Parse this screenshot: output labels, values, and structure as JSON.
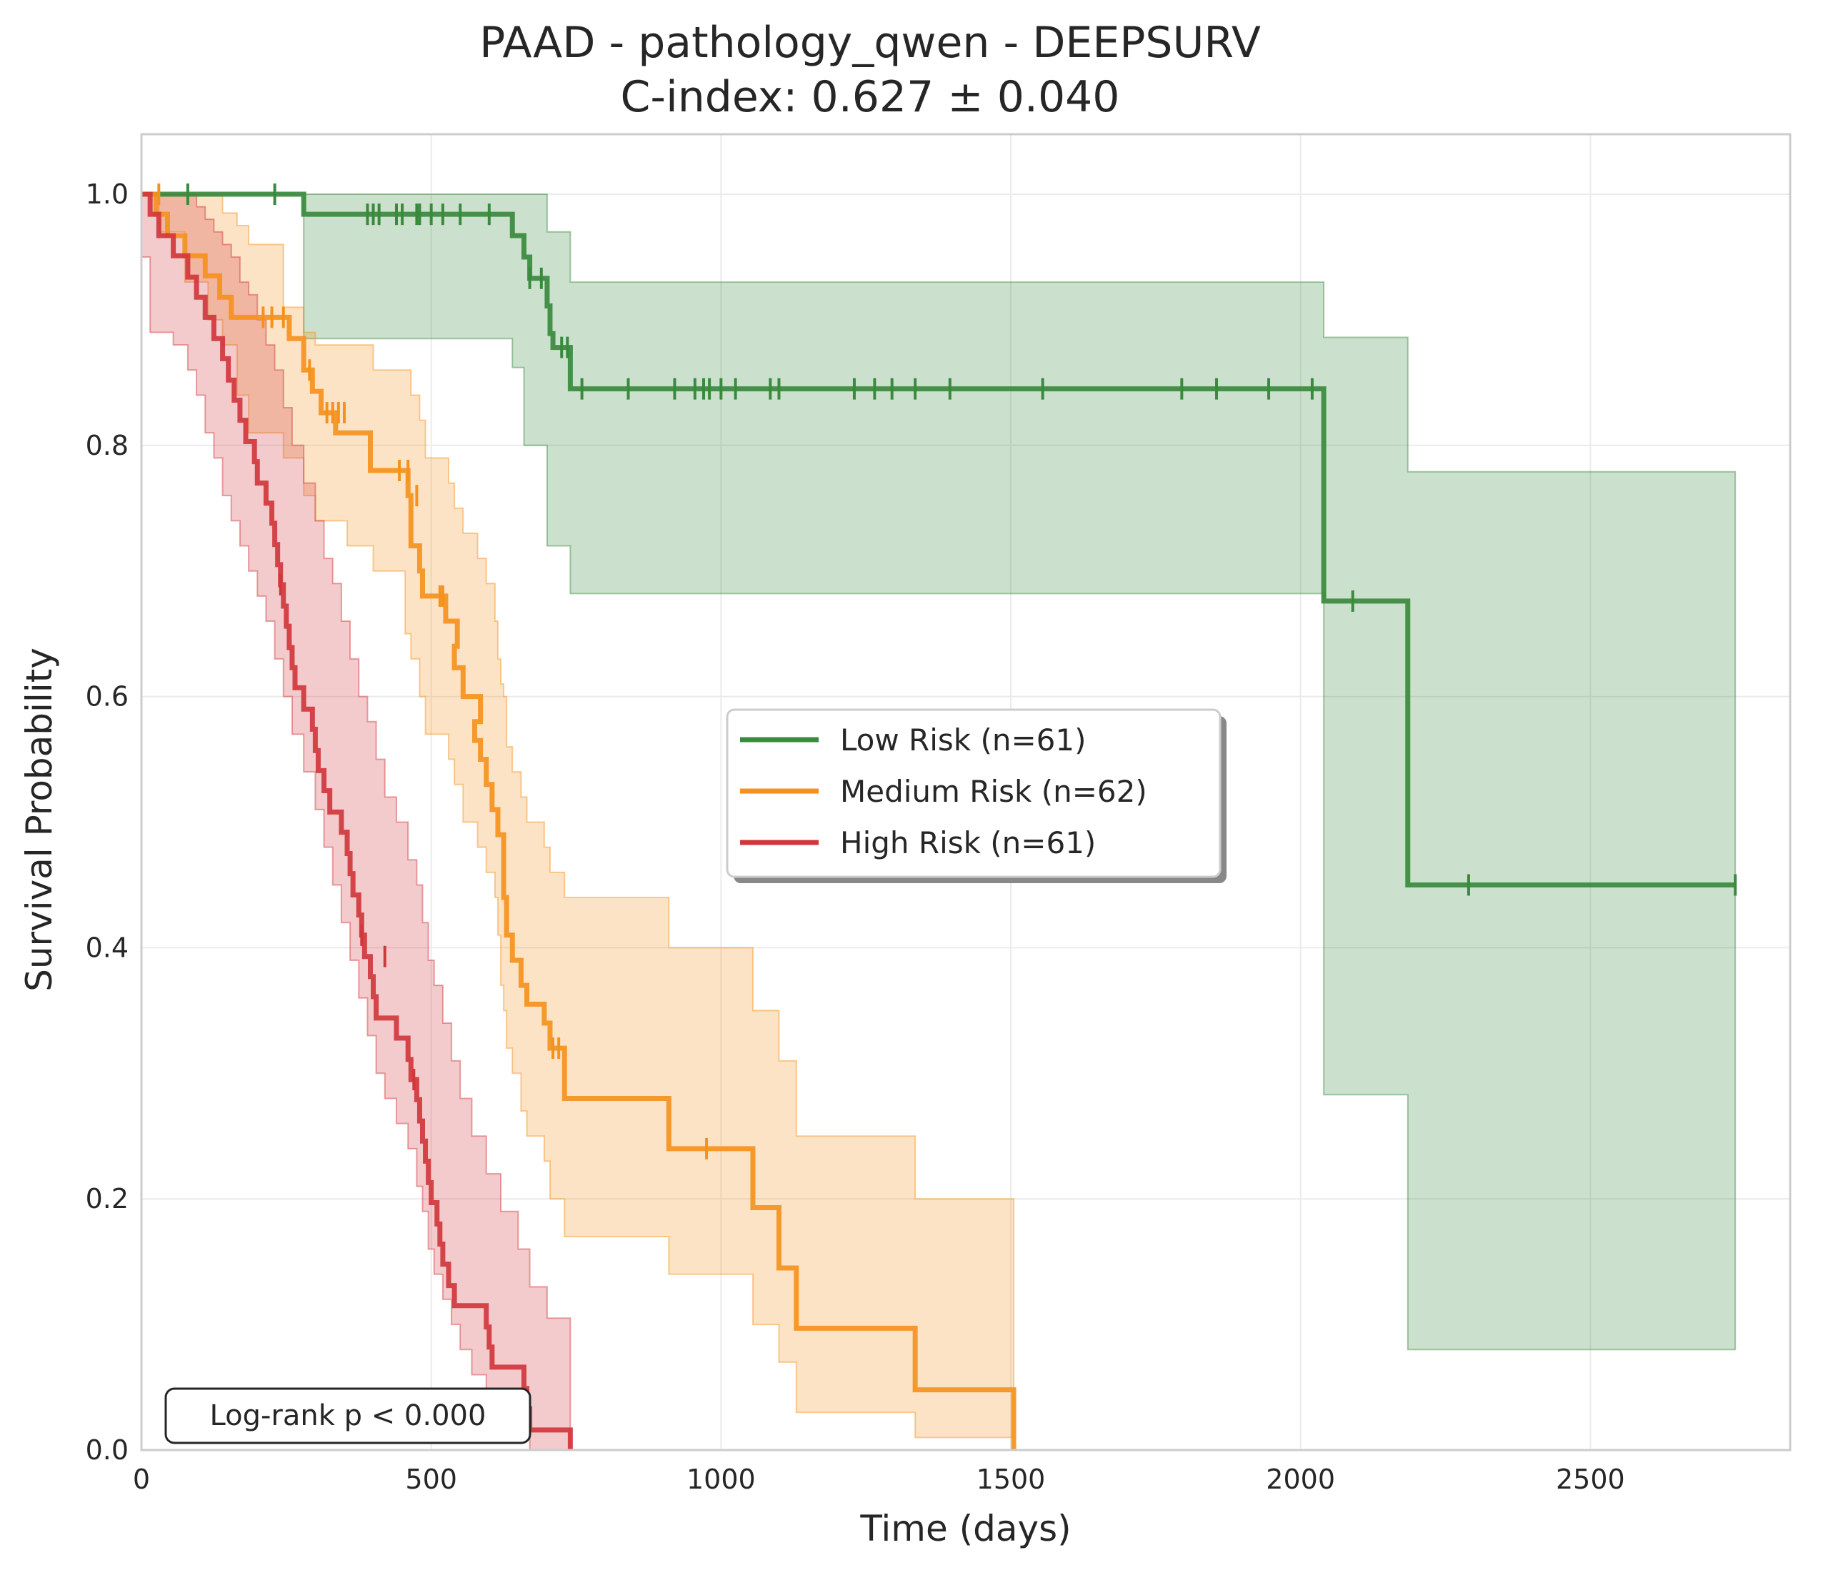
{
  "chart_data": {
    "type": "line",
    "title": "PAAD - pathology_qwen - DEEPSURV",
    "subtitle": "C-index: 0.627 ± 0.040",
    "xlabel": "Time (days)",
    "ylabel": "Survival Probability",
    "xlim": [
      0,
      2890
    ],
    "ylim": [
      0,
      1.05
    ],
    "xticks": [
      0,
      500,
      1000,
      1500,
      2000,
      2500
    ],
    "xtick_labels": [
      "0",
      "500",
      "1000",
      "1500",
      "2000",
      "2500"
    ],
    "yticks": [
      0.0,
      0.2,
      0.4,
      0.6,
      0.8,
      1.0
    ],
    "ytick_labels": [
      "0.0",
      "0.2",
      "0.4",
      "0.6",
      "0.8",
      "1.0"
    ],
    "grid": true,
    "legend_position": "center-right",
    "annotation": "Log-rank p < 0.000",
    "series": [
      {
        "name": "Low Risk (n=61)",
        "color": "#3a8a3e",
        "steps": [
          [
            0,
            1.0
          ],
          [
            280,
            0.984
          ],
          [
            640,
            0.967
          ],
          [
            660,
            0.95
          ],
          [
            670,
            0.933
          ],
          [
            700,
            0.911
          ],
          [
            705,
            0.889
          ],
          [
            710,
            0.878
          ],
          [
            740,
            0.845
          ],
          [
            2040,
            0.676
          ],
          [
            2185,
            0.45
          ],
          [
            2750,
            0.45
          ]
        ],
        "ci": [
          [
            0,
            1.0,
            1.0
          ],
          [
            280,
            0.885,
            1.0
          ],
          [
            640,
            0.862,
            1.0
          ],
          [
            660,
            0.8,
            1.0
          ],
          [
            700,
            0.72,
            0.97
          ],
          [
            740,
            0.682,
            0.93
          ],
          [
            2040,
            0.283,
            0.886
          ],
          [
            2185,
            0.08,
            0.779
          ],
          [
            2750,
            0.08,
            0.779
          ]
        ],
        "censors": [
          [
            230,
            1.0
          ],
          [
            80,
            1.0
          ],
          [
            390,
            0.984
          ],
          [
            400,
            0.984
          ],
          [
            410,
            0.984
          ],
          [
            440,
            0.984
          ],
          [
            450,
            0.984
          ],
          [
            475,
            0.984
          ],
          [
            480,
            0.984
          ],
          [
            500,
            0.984
          ],
          [
            520,
            0.984
          ],
          [
            550,
            0.984
          ],
          [
            600,
            0.984
          ],
          [
            670,
            0.933
          ],
          [
            690,
            0.933
          ],
          [
            725,
            0.878
          ],
          [
            735,
            0.878
          ],
          [
            760,
            0.845
          ],
          [
            840,
            0.845
          ],
          [
            920,
            0.845
          ],
          [
            955,
            0.845
          ],
          [
            970,
            0.845
          ],
          [
            980,
            0.845
          ],
          [
            1000,
            0.845
          ],
          [
            1025,
            0.845
          ],
          [
            1085,
            0.845
          ],
          [
            1100,
            0.845
          ],
          [
            1230,
            0.845
          ],
          [
            1265,
            0.845
          ],
          [
            1295,
            0.845
          ],
          [
            1335,
            0.845
          ],
          [
            1395,
            0.845
          ],
          [
            1555,
            0.845
          ],
          [
            1795,
            0.845
          ],
          [
            1855,
            0.845
          ],
          [
            1945,
            0.845
          ],
          [
            2020,
            0.845
          ],
          [
            2090,
            0.676
          ],
          [
            2290,
            0.45
          ],
          [
            2750,
            0.45
          ]
        ]
      },
      {
        "name": "Medium Risk (n=62)",
        "color": "#f5921e",
        "steps": [
          [
            0,
            1.0
          ],
          [
            25,
            0.984
          ],
          [
            45,
            0.967
          ],
          [
            75,
            0.951
          ],
          [
            110,
            0.935
          ],
          [
            135,
            0.918
          ],
          [
            155,
            0.902
          ],
          [
            255,
            0.885
          ],
          [
            280,
            0.86
          ],
          [
            295,
            0.843
          ],
          [
            310,
            0.826
          ],
          [
            335,
            0.81
          ],
          [
            395,
            0.797
          ],
          [
            395,
            0.78
          ],
          [
            460,
            0.76
          ],
          [
            465,
            0.72
          ],
          [
            480,
            0.7
          ],
          [
            485,
            0.68
          ],
          [
            525,
            0.66
          ],
          [
            545,
            0.64
          ],
          [
            540,
            0.623
          ],
          [
            555,
            0.6
          ],
          [
            585,
            0.58
          ],
          [
            575,
            0.565
          ],
          [
            585,
            0.55
          ],
          [
            595,
            0.53
          ],
          [
            605,
            0.51
          ],
          [
            615,
            0.49
          ],
          [
            625,
            0.44
          ],
          [
            630,
            0.41
          ],
          [
            640,
            0.39
          ],
          [
            655,
            0.37
          ],
          [
            665,
            0.355
          ],
          [
            695,
            0.34
          ],
          [
            705,
            0.32
          ],
          [
            730,
            0.28
          ],
          [
            910,
            0.24
          ],
          [
            1055,
            0.193
          ],
          [
            1100,
            0.145
          ],
          [
            1130,
            0.097
          ],
          [
            1335,
            0.048
          ],
          [
            1505,
            0.0
          ]
        ],
        "ci": [
          [
            0,
            1.0,
            1.0
          ],
          [
            30,
            0.97,
            1.0
          ],
          [
            75,
            0.93,
            1.0
          ],
          [
            115,
            0.9,
            1.0
          ],
          [
            140,
            0.88,
            0.985
          ],
          [
            165,
            0.84,
            0.975
          ],
          [
            185,
            0.81,
            0.96
          ],
          [
            245,
            0.79,
            0.91
          ],
          [
            280,
            0.76,
            0.89
          ],
          [
            300,
            0.74,
            0.88
          ],
          [
            355,
            0.72,
            0.88
          ],
          [
            400,
            0.7,
            0.86
          ],
          [
            455,
            0.65,
            0.86
          ],
          [
            465,
            0.63,
            0.84
          ],
          [
            480,
            0.6,
            0.82
          ],
          [
            490,
            0.57,
            0.79
          ],
          [
            530,
            0.55,
            0.77
          ],
          [
            540,
            0.53,
            0.75
          ],
          [
            555,
            0.5,
            0.73
          ],
          [
            580,
            0.48,
            0.71
          ],
          [
            595,
            0.46,
            0.69
          ],
          [
            610,
            0.44,
            0.66
          ],
          [
            615,
            0.41,
            0.63
          ],
          [
            620,
            0.37,
            0.61
          ],
          [
            625,
            0.35,
            0.6
          ],
          [
            630,
            0.32,
            0.56
          ],
          [
            640,
            0.3,
            0.54
          ],
          [
            655,
            0.27,
            0.52
          ],
          [
            665,
            0.25,
            0.5
          ],
          [
            695,
            0.23,
            0.48
          ],
          [
            705,
            0.2,
            0.46
          ],
          [
            730,
            0.17,
            0.44
          ],
          [
            910,
            0.14,
            0.4
          ],
          [
            1055,
            0.1,
            0.35
          ],
          [
            1100,
            0.07,
            0.31
          ],
          [
            1130,
            0.03,
            0.25
          ],
          [
            1335,
            0.01,
            0.2
          ],
          [
            1505,
            0.0,
            0.196
          ]
        ],
        "censors": [
          [
            30,
            1.0
          ],
          [
            210,
            0.902
          ],
          [
            225,
            0.902
          ],
          [
            245,
            0.902
          ],
          [
            290,
            0.86
          ],
          [
            320,
            0.826
          ],
          [
            330,
            0.826
          ],
          [
            340,
            0.826
          ],
          [
            350,
            0.826
          ],
          [
            445,
            0.78
          ],
          [
            460,
            0.78
          ],
          [
            475,
            0.76
          ],
          [
            515,
            0.68
          ],
          [
            520,
            0.68
          ],
          [
            710,
            0.32
          ],
          [
            720,
            0.32
          ],
          [
            975,
            0.24
          ]
        ]
      },
      {
        "name": "High Risk (n=61)",
        "color": "#d0373c",
        "steps": [
          [
            0,
            1.0
          ],
          [
            15,
            0.984
          ],
          [
            30,
            0.967
          ],
          [
            55,
            0.951
          ],
          [
            80,
            0.934
          ],
          [
            95,
            0.918
          ],
          [
            110,
            0.902
          ],
          [
            125,
            0.885
          ],
          [
            140,
            0.869
          ],
          [
            150,
            0.852
          ],
          [
            160,
            0.836
          ],
          [
            170,
            0.82
          ],
          [
            180,
            0.803
          ],
          [
            195,
            0.787
          ],
          [
            200,
            0.77
          ],
          [
            215,
            0.754
          ],
          [
            225,
            0.738
          ],
          [
            230,
            0.721
          ],
          [
            235,
            0.705
          ],
          [
            240,
            0.689
          ],
          [
            245,
            0.672
          ],
          [
            250,
            0.656
          ],
          [
            255,
            0.639
          ],
          [
            260,
            0.623
          ],
          [
            265,
            0.607
          ],
          [
            280,
            0.59
          ],
          [
            295,
            0.574
          ],
          [
            300,
            0.557
          ],
          [
            305,
            0.541
          ],
          [
            315,
            0.525
          ],
          [
            325,
            0.508
          ],
          [
            345,
            0.492
          ],
          [
            355,
            0.475
          ],
          [
            360,
            0.459
          ],
          [
            365,
            0.442
          ],
          [
            375,
            0.426
          ],
          [
            380,
            0.41
          ],
          [
            385,
            0.393
          ],
          [
            395,
            0.377
          ],
          [
            400,
            0.361
          ],
          [
            405,
            0.344
          ],
          [
            440,
            0.328
          ],
          [
            460,
            0.311
          ],
          [
            465,
            0.295
          ],
          [
            475,
            0.279
          ],
          [
            480,
            0.262
          ],
          [
            485,
            0.246
          ],
          [
            490,
            0.23
          ],
          [
            495,
            0.213
          ],
          [
            500,
            0.197
          ],
          [
            510,
            0.18
          ],
          [
            515,
            0.164
          ],
          [
            520,
            0.148
          ],
          [
            530,
            0.131
          ],
          [
            540,
            0.115
          ],
          [
            595,
            0.098
          ],
          [
            600,
            0.082
          ],
          [
            605,
            0.066
          ],
          [
            660,
            0.049
          ],
          [
            665,
            0.033
          ],
          [
            670,
            0.016
          ],
          [
            740,
            0.0
          ]
        ],
        "ci": [
          [
            0,
            0.95,
            1.0
          ],
          [
            15,
            0.89,
            1.0
          ],
          [
            55,
            0.88,
            1.0
          ],
          [
            80,
            0.86,
            1.0
          ],
          [
            95,
            0.84,
            0.99
          ],
          [
            110,
            0.81,
            0.98
          ],
          [
            125,
            0.79,
            0.97
          ],
          [
            140,
            0.76,
            0.96
          ],
          [
            155,
            0.74,
            0.95
          ],
          [
            170,
            0.72,
            0.93
          ],
          [
            185,
            0.7,
            0.92
          ],
          [
            200,
            0.68,
            0.9
          ],
          [
            215,
            0.66,
            0.88
          ],
          [
            230,
            0.63,
            0.86
          ],
          [
            245,
            0.6,
            0.83
          ],
          [
            260,
            0.57,
            0.8
          ],
          [
            280,
            0.54,
            0.77
          ],
          [
            300,
            0.51,
            0.74
          ],
          [
            315,
            0.48,
            0.71
          ],
          [
            330,
            0.45,
            0.69
          ],
          [
            345,
            0.42,
            0.66
          ],
          [
            360,
            0.39,
            0.63
          ],
          [
            375,
            0.36,
            0.6
          ],
          [
            390,
            0.33,
            0.58
          ],
          [
            405,
            0.3,
            0.55
          ],
          [
            420,
            0.28,
            0.52
          ],
          [
            440,
            0.26,
            0.5
          ],
          [
            460,
            0.24,
            0.47
          ],
          [
            475,
            0.21,
            0.45
          ],
          [
            485,
            0.19,
            0.42
          ],
          [
            495,
            0.16,
            0.39
          ],
          [
            505,
            0.14,
            0.37
          ],
          [
            520,
            0.12,
            0.34
          ],
          [
            535,
            0.1,
            0.31
          ],
          [
            550,
            0.08,
            0.28
          ],
          [
            570,
            0.06,
            0.25
          ],
          [
            595,
            0.04,
            0.22
          ],
          [
            620,
            0.02,
            0.19
          ],
          [
            650,
            0.01,
            0.16
          ],
          [
            670,
            0.0,
            0.13
          ],
          [
            700,
            0.0,
            0.105
          ],
          [
            740,
            0.0,
            0.105
          ]
        ],
        "censors": [
          [
            240,
            0.689
          ],
          [
            380,
            0.41
          ],
          [
            420,
            0.393
          ],
          [
            470,
            0.295
          ]
        ]
      }
    ]
  }
}
